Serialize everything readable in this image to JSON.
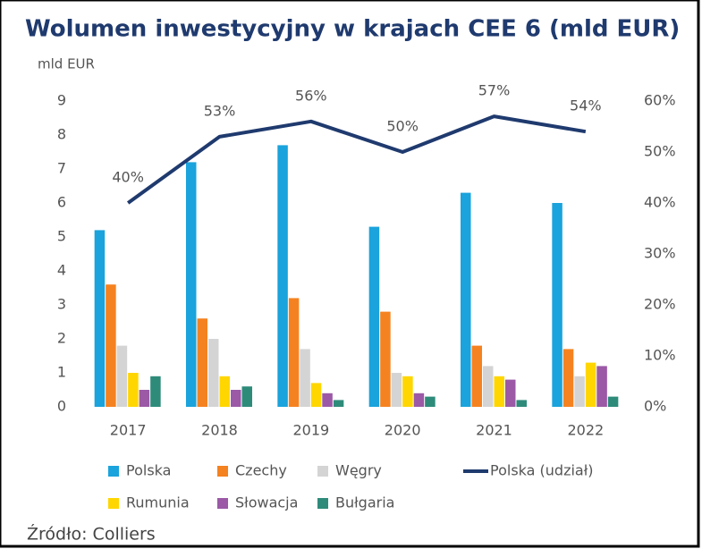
{
  "chart_data": {
    "type": "bar",
    "title": "Wolumen inwestycyjny w krajach CEE 6 (mld EUR)",
    "y_label": "mld EUR",
    "source": "Źródło: Colliers",
    "categories": [
      "2017",
      "2018",
      "2019",
      "2020",
      "2021",
      "2022"
    ],
    "series": [
      {
        "name": "Polska",
        "color": "#1aa3dc",
        "values": [
          5.2,
          7.2,
          7.7,
          5.3,
          6.3,
          6.0
        ]
      },
      {
        "name": "Czechy",
        "color": "#f58220",
        "values": [
          3.6,
          2.6,
          3.2,
          2.8,
          1.8,
          1.7
        ]
      },
      {
        "name": "Węgry",
        "color": "#d4d4d4",
        "values": [
          1.8,
          2.0,
          1.7,
          1.0,
          1.2,
          0.9
        ]
      },
      {
        "name": "Rumunia",
        "color": "#ffd600",
        "values": [
          1.0,
          0.9,
          0.7,
          0.9,
          0.9,
          1.3
        ]
      },
      {
        "name": "Słowacja",
        "color": "#9b59a6",
        "values": [
          0.5,
          0.5,
          0.4,
          0.4,
          0.8,
          1.2
        ]
      },
      {
        "name": "Bułgaria",
        "color": "#2e8b7a",
        "values": [
          0.9,
          0.6,
          0.2,
          0.3,
          0.2,
          0.3
        ]
      },
      {
        "name": "Polska (udział)",
        "color": "#1f3a6e",
        "type": "line",
        "axis": "y2",
        "values": [
          40,
          53,
          56,
          50,
          57,
          54
        ],
        "value_labels": [
          "40%",
          "53%",
          "56%",
          "50%",
          "57%",
          "54%"
        ]
      }
    ],
    "ylim": [
      0,
      9
    ],
    "yticks": [
      0,
      1,
      2,
      3,
      4,
      5,
      6,
      7,
      8,
      9
    ],
    "y2lim": [
      0,
      60
    ],
    "y2ticks": [
      {
        "value": 0,
        "label": "0%"
      },
      {
        "value": 10,
        "label": "10%"
      },
      {
        "value": 20,
        "label": "20%"
      },
      {
        "value": 30,
        "label": "30%"
      },
      {
        "value": 40,
        "label": "40%"
      },
      {
        "value": 50,
        "label": "50%"
      },
      {
        "value": 60,
        "label": "60%"
      }
    ],
    "grid": false,
    "legend": "bottom"
  }
}
